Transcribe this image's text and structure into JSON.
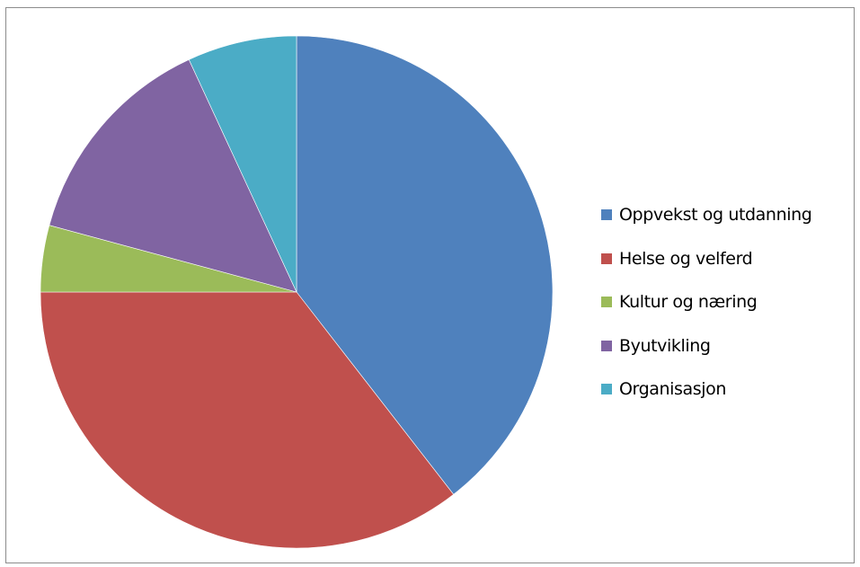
{
  "chart_data": {
    "type": "pie",
    "title": "",
    "legend_position": "right",
    "slices": [
      {
        "name": "Oppvekst og utdanning",
        "value": 39.5,
        "color": "#4f81bd"
      },
      {
        "name": "Helse og velferd",
        "value": 35.5,
        "color": "#c0504d"
      },
      {
        "name": "Kultur og næring",
        "value": 4.2,
        "color": "#9bbb59"
      },
      {
        "name": "Byutvikling",
        "value": 13.9,
        "color": "#8064a2"
      },
      {
        "name": "Organisasjon",
        "value": 6.9,
        "color": "#4bacc6"
      }
    ]
  }
}
